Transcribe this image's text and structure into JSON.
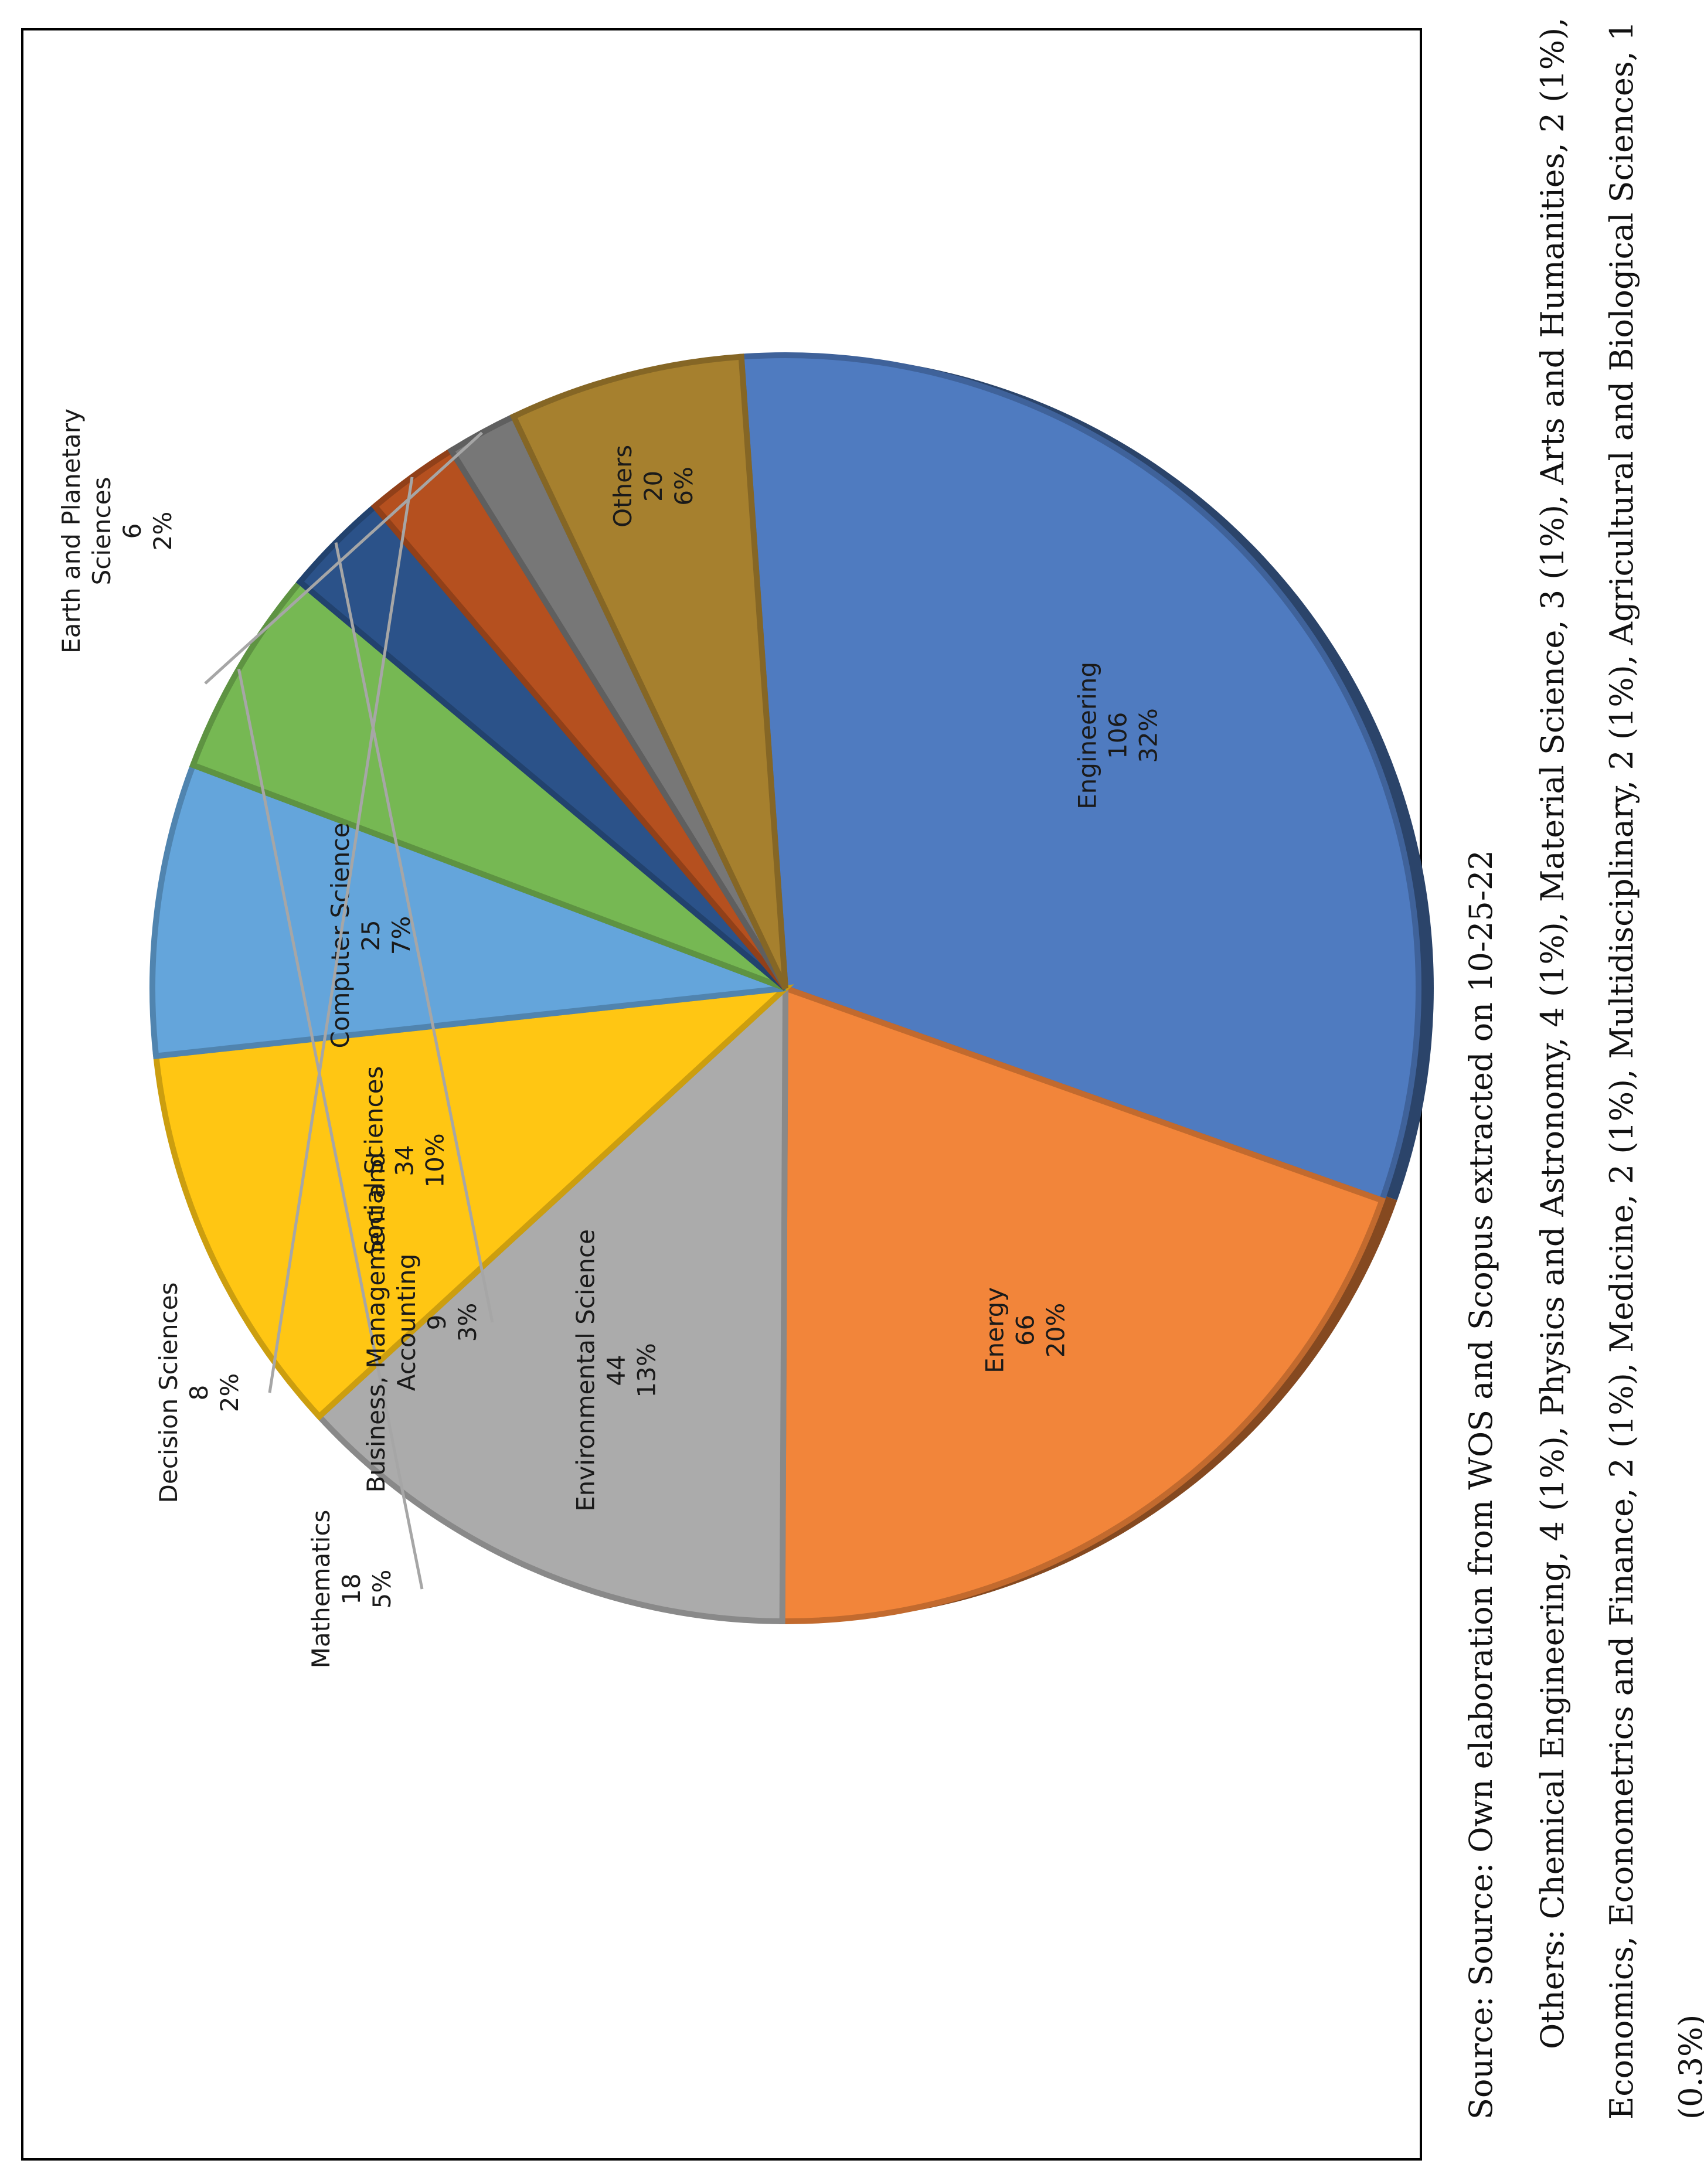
{
  "chart_data": {
    "type": "pie",
    "title": "",
    "slices": [
      {
        "label": "Engineering",
        "value": 106,
        "percent": "32%",
        "color": "#4F7BC0"
      },
      {
        "label": "Energy",
        "value": 66,
        "percent": "20%",
        "color": "#F2853A"
      },
      {
        "label": "Environmental Science",
        "value": 44,
        "percent": "13%",
        "color": "#ABABAB"
      },
      {
        "label": "Social Sciences",
        "value": 34,
        "percent": "10%",
        "color": "#FFC613"
      },
      {
        "label": "Computer Science",
        "value": 25,
        "percent": "7%",
        "color": "#64A5DB"
      },
      {
        "label": "Mathematics",
        "value": 18,
        "percent": "5%",
        "color": "#76B853"
      },
      {
        "label": "Business, Management and Accounting",
        "value": 9,
        "percent": "3%",
        "color": "#2B5289"
      },
      {
        "label": "Decision Sciences",
        "value": 8,
        "percent": "2%",
        "color": "#B5501F"
      },
      {
        "label": "Earth and Planetary Sciences",
        "value": 6,
        "percent": "2%",
        "color": "#777777"
      },
      {
        "label": "Others",
        "value": 20,
        "percent": "6%",
        "color": "#A6802E"
      }
    ],
    "label_lines": {
      "Engineering": [
        "Engineering",
        "106",
        "32%"
      ],
      "Energy": [
        "Energy",
        "66",
        "20%"
      ],
      "Environmental Science": [
        "Environmental Science",
        "44",
        "13%"
      ],
      "Social Sciences": [
        "Social Sciences",
        "34",
        "10%"
      ],
      "Computer Science": [
        "Computer Science",
        "25",
        "7%"
      ],
      "Mathematics": [
        "Mathematics",
        "18",
        "5%"
      ],
      "Business, Management and Accounting": [
        "Business, Management and",
        "Accounting",
        "9",
        "3%"
      ],
      "Decision Sciences": [
        "Decision Sciences",
        "8",
        "2%"
      ],
      "Earth and Planetary Sciences": [
        "Earth and Planetary",
        "Sciences",
        "6",
        "2%"
      ],
      "Others": [
        "Others",
        "20",
        "6%"
      ]
    }
  },
  "caption": {
    "source": "Source: Source: Own elaboration from WOS and Scopus extracted on 10-25-22",
    "note": "Others: Chemical Engineering, 4 (1%), Physics and Astronomy, 4 (1%), Material Science, 3 (1%), Arts and Humanities, 2 (1%), Economics, Econometrics and Finance, 2 (1%), Medicine, 2 (1%), Multidisciplinary, 2 (1%), Agricultural and Biological Sciences, 1 (0.3%)"
  }
}
